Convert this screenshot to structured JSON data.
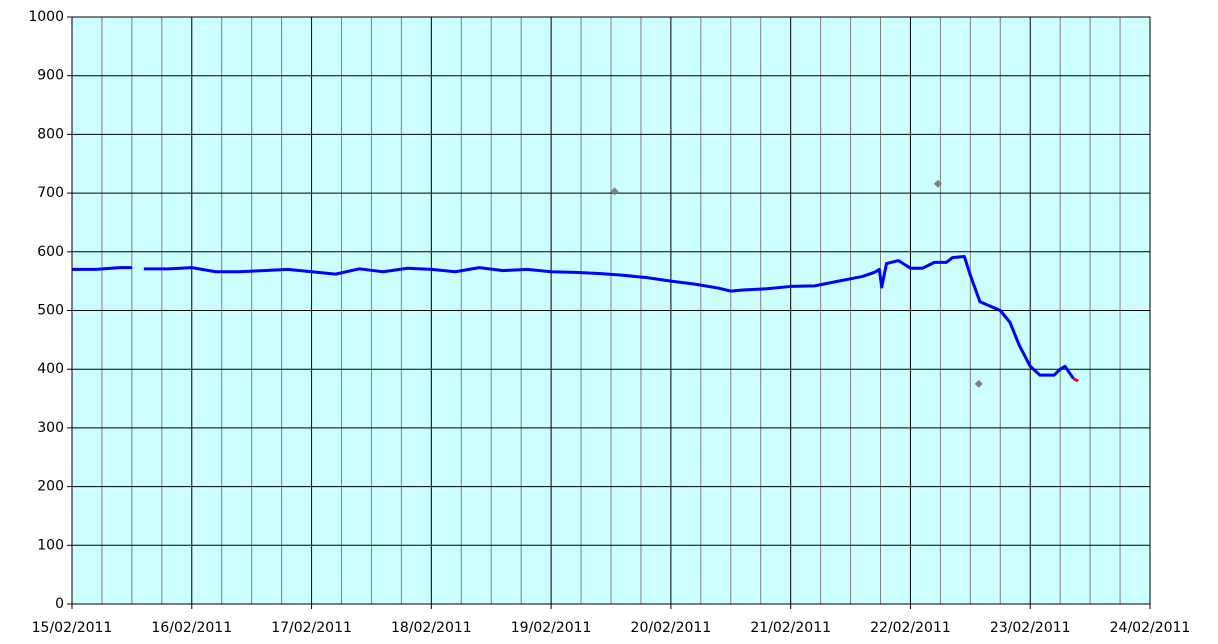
{
  "chart_data": {
    "type": "line",
    "xlim": [
      0,
      9
    ],
    "xticks": [
      {
        "value": 0,
        "label": "15/02/2011"
      },
      {
        "value": 1,
        "label": "16/02/2011"
      },
      {
        "value": 2,
        "label": "17/02/2011"
      },
      {
        "value": 3,
        "label": "18/02/2011"
      },
      {
        "value": 4,
        "label": "19/02/2011"
      },
      {
        "value": 5,
        "label": "20/02/2011"
      },
      {
        "value": 6,
        "label": "21/02/2011"
      },
      {
        "value": 7,
        "label": "22/02/2011"
      },
      {
        "value": 8,
        "label": "23/02/2011"
      },
      {
        "value": 9,
        "label": "24/02/2011"
      }
    ],
    "xminorticks": [
      0.25,
      0.5,
      0.75,
      1.25,
      1.5,
      1.75,
      2.25,
      2.5,
      2.75,
      3.25,
      3.5,
      3.75,
      4.25,
      4.5,
      4.75,
      5.25,
      5.5,
      5.75,
      6.25,
      6.5,
      6.75,
      7.25,
      7.5,
      7.75,
      8.25,
      8.5,
      8.75
    ],
    "ylim": [
      0,
      1000
    ],
    "yticks": [
      0,
      100,
      200,
      300,
      400,
      500,
      600,
      700,
      800,
      900,
      1000
    ],
    "grid": true,
    "background": "#ccffff",
    "series": [
      {
        "color": "#0000ff",
        "marker": false,
        "x": [
          0,
          0.2,
          0.4,
          0.5,
          0.55,
          0.6,
          0.8,
          1.0,
          1.2,
          1.4,
          1.6,
          1.8,
          2.0,
          2.2,
          2.4,
          2.6,
          2.8,
          3.0,
          3.2,
          3.4,
          3.6,
          3.8,
          4.0,
          4.2,
          4.4,
          4.6,
          4.8,
          5.0,
          5.2,
          5.4,
          5.5,
          5.6,
          5.8,
          6.0,
          6.2,
          6.4,
          6.6,
          6.7,
          6.74,
          6.76,
          6.8,
          6.9,
          7.0,
          7.1,
          7.2,
          7.3,
          7.35,
          7.45,
          7.5,
          7.58,
          7.75,
          7.83,
          7.91,
          8.0,
          8.08,
          8.2,
          8.25,
          8.29,
          8.36
        ],
        "values": [
          570,
          570,
          573,
          573,
          null,
          571,
          571,
          573,
          566,
          566,
          568,
          570,
          566,
          562,
          571,
          566,
          572,
          570,
          566,
          573,
          568,
          570,
          566,
          565,
          563,
          560,
          556,
          550,
          545,
          538,
          533,
          535,
          537,
          541,
          542,
          550,
          558,
          565,
          570,
          540,
          580,
          585,
          572,
          572,
          582,
          582,
          590,
          592,
          560,
          515,
          500,
          480,
          440,
          405,
          390,
          390,
          400,
          405,
          384
        ]
      },
      {
        "color": "#ff0000",
        "marker": false,
        "x": [
          8.36,
          8.4
        ],
        "values": [
          384,
          380
        ]
      },
      {
        "color": "#808080",
        "marker": true,
        "x": [
          4.53,
          7.23,
          7.57
        ],
        "values": [
          703,
          716,
          375
        ]
      }
    ]
  }
}
